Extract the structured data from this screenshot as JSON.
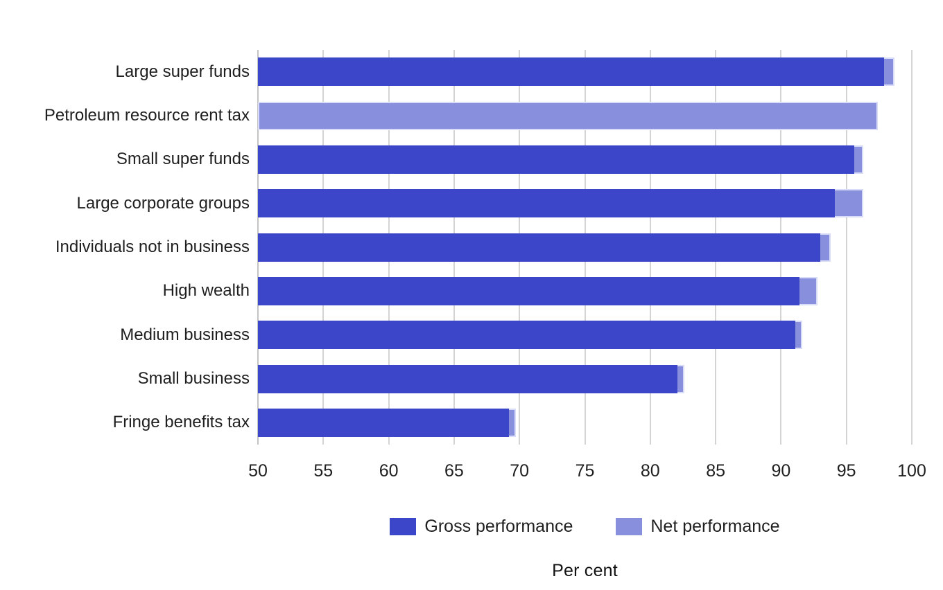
{
  "chart_data": {
    "type": "bar",
    "orientation": "horizontal",
    "title": "",
    "xlabel": "Per cent",
    "xlim": [
      50,
      100
    ],
    "xticks": [
      50,
      55,
      60,
      65,
      70,
      75,
      80,
      85,
      90,
      95,
      100
    ],
    "grid": "vertical",
    "legend_position": "bottom",
    "categories": [
      "Large super funds",
      "Petroleum resource rent tax",
      "Small super funds",
      "Large corporate groups",
      "Individuals not in business",
      "High wealth",
      "Medium business",
      "Small business",
      "Fringe benefits tax"
    ],
    "series": [
      {
        "name": "Gross performance",
        "color": "#3b46c8",
        "values": [
          97.9,
          null,
          95.6,
          94.1,
          93.0,
          91.4,
          91.1,
          82.1,
          69.2
        ]
      },
      {
        "name": "Net performance",
        "color": "#8890de",
        "values": [
          98.7,
          97.4,
          96.3,
          96.3,
          93.8,
          92.8,
          91.6,
          82.6,
          69.7
        ]
      }
    ]
  },
  "colors": {
    "gridline": "#d4d4d4",
    "text": "#1f1f1f",
    "background": "#ffffff",
    "net_border_tint": "#d9dcf6"
  }
}
